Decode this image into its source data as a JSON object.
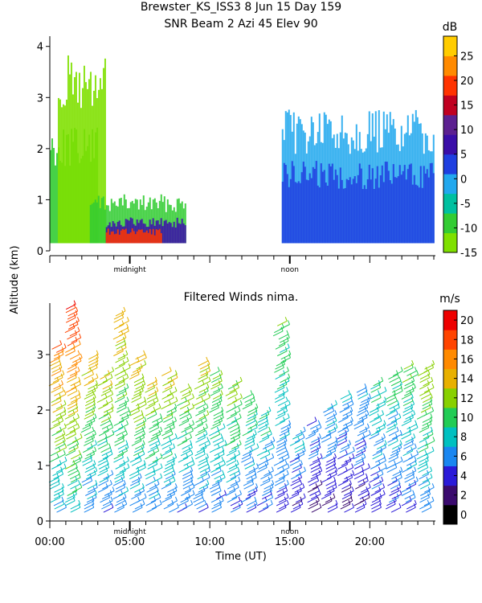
{
  "header": {
    "title_line1": "Brewster_KS_ISS3   8 Jun 15 Day 159",
    "title_line2": "SNR Beam 2 Azi  45 Elev 90"
  },
  "shared_ylabel": "Altitude (km)",
  "chart_data": [
    {
      "type": "heatmap",
      "title": "SNR Beam 2 Azi  45 Elev 90",
      "xlabel": "",
      "ylabel": "Altitude (km)",
      "xlim": [
        0,
        24
      ],
      "ylim": [
        0,
        4.2
      ],
      "y_ticks": [
        "0",
        "1",
        "2",
        "3",
        "4"
      ],
      "x_markers": [
        "midnight",
        "noon"
      ],
      "colorbar": {
        "unit": "dB",
        "tick_labels": [
          "-15",
          "-10",
          "-5",
          "0",
          "5",
          "10",
          "15",
          "20",
          "25"
        ],
        "colors": [
          "#7fe000",
          "#33cc33",
          "#00c0a0",
          "#22a8ee",
          "#1f3fe0",
          "#3a0ea8",
          "#5c2090",
          "#c00020",
          "#ff3300",
          "#ff8a00",
          "#ffcc00"
        ]
      },
      "grid": false,
      "regions": [
        {
          "hour_start": 0.0,
          "hour_end": 3.0,
          "band_top_km": 2.2,
          "level_db": -10
        },
        {
          "hour_start": 0.5,
          "hour_end": 3.5,
          "band_top_km": 3.5,
          "level_db": -15
        },
        {
          "hour_start": 2.5,
          "hour_end": 8.5,
          "band_top_km": 1.0,
          "level_db": -10
        },
        {
          "hour_start": 3.5,
          "hour_end": 8.5,
          "band_top_km": 0.6,
          "level_db": 5
        },
        {
          "hour_start": 3.5,
          "hour_end": 7.0,
          "band_top_km": 0.4,
          "level_db": 15
        },
        {
          "hour_start": 14.5,
          "hour_end": 24.0,
          "band_top_km": 2.5,
          "level_db": -5
        },
        {
          "hour_start": 14.5,
          "hour_end": 24.0,
          "band_top_km": 1.6,
          "level_db": 0
        }
      ]
    },
    {
      "type": "scatter",
      "title": "Filtered Winds nima.",
      "xlabel": "Time (UT)",
      "ylabel": "Altitude (km)",
      "xlim": [
        0,
        24
      ],
      "ylim": [
        0,
        4
      ],
      "x_ticks": [
        "00:00",
        "05:00",
        "10:00",
        "15:00",
        "20:00"
      ],
      "y_ticks": [
        "0",
        "1",
        "2",
        "3"
      ],
      "x_markers": [
        "midnight",
        "noon"
      ],
      "colorbar": {
        "unit": "m/s",
        "tick_labels": [
          "0",
          "2",
          "4",
          "6",
          "8",
          "10",
          "12",
          "14",
          "16",
          "18",
          "20"
        ],
        "colors": [
          "#000000",
          "#3a0a6e",
          "#2a1ad8",
          "#1a86f0",
          "#00c0c0",
          "#22cc55",
          "#88d000",
          "#e8b000",
          "#ff8a00",
          "#ff4400",
          "#ee0000"
        ]
      },
      "grid": false,
      "profiles": [
        {
          "hour": 0.5,
          "top_km": 3.2,
          "speed_ms": 14
        },
        {
          "hour": 1.5,
          "top_km": 3.9,
          "speed_ms": 16
        },
        {
          "hour": 2.5,
          "top_km": 3.0,
          "speed_ms": 12
        },
        {
          "hour": 3.5,
          "top_km": 2.7,
          "speed_ms": 11
        },
        {
          "hour": 4.5,
          "top_km": 3.8,
          "speed_ms": 12
        },
        {
          "hour": 5.5,
          "top_km": 3.0,
          "speed_ms": 12
        },
        {
          "hour": 6.5,
          "top_km": 2.5,
          "speed_ms": 11
        },
        {
          "hour": 7.5,
          "top_km": 2.7,
          "speed_ms": 11
        },
        {
          "hour": 8.5,
          "top_km": 2.4,
          "speed_ms": 10
        },
        {
          "hour": 9.5,
          "top_km": 2.9,
          "speed_ms": 11
        },
        {
          "hour": 10.5,
          "top_km": 2.7,
          "speed_ms": 10
        },
        {
          "hour": 11.5,
          "top_km": 2.5,
          "speed_ms": 10
        },
        {
          "hour": 12.5,
          "top_km": 2.3,
          "speed_ms": 9
        },
        {
          "hour": 13.5,
          "top_km": 2.0,
          "speed_ms": 8
        },
        {
          "hour": 14.5,
          "top_km": 3.6,
          "speed_ms": 9
        },
        {
          "hour": 15.5,
          "top_km": 1.6,
          "speed_ms": 6
        },
        {
          "hour": 16.5,
          "top_km": 1.8,
          "speed_ms": 5
        },
        {
          "hour": 17.5,
          "top_km": 2.1,
          "speed_ms": 6
        },
        {
          "hour": 18.5,
          "top_km": 2.3,
          "speed_ms": 6
        },
        {
          "hour": 19.5,
          "top_km": 2.4,
          "speed_ms": 6
        },
        {
          "hour": 20.5,
          "top_km": 2.5,
          "speed_ms": 8
        },
        {
          "hour": 21.5,
          "top_km": 2.7,
          "speed_ms": 8
        },
        {
          "hour": 22.5,
          "top_km": 2.8,
          "speed_ms": 9
        },
        {
          "hour": 23.5,
          "top_km": 2.8,
          "speed_ms": 11
        }
      ]
    }
  ]
}
